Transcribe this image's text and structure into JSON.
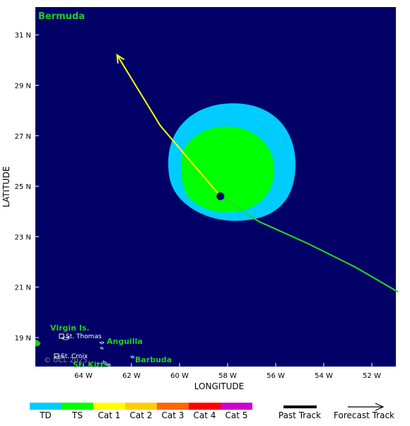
{
  "map": {
    "region_label": "Bermuda",
    "xlabel": "LONGITUDE",
    "ylabel": "LATITUDE",
    "copyright": "© UCL 2025",
    "ocean_color": "#000066",
    "x_ticks": [
      "64 W",
      "62 W",
      "60 W",
      "58 W",
      "56 W",
      "54 W",
      "52 W"
    ],
    "y_ticks": [
      "31 N",
      "29 N",
      "27 N",
      "25 N",
      "23 N",
      "21 N",
      "19 N"
    ],
    "places": {
      "virgin_islands": "Virgin Is.",
      "st_thomas": "St. Thomas",
      "st_croix": "St. Croix",
      "anguilla": "Anguilla",
      "st_kitts": "St. Kitts",
      "barbuda": "Barbuda"
    }
  },
  "storm": {
    "center": {
      "lon": -58.3,
      "lat": 24.6
    },
    "past_track": [
      {
        "lon": -50.9,
        "lat": 20.8
      },
      {
        "lon": -52.7,
        "lat": 21.8
      },
      {
        "lon": -54.6,
        "lat": 22.7
      },
      {
        "lon": -56.7,
        "lat": 23.6
      },
      {
        "lon": -58.3,
        "lat": 24.6
      }
    ],
    "forecast_track": [
      {
        "lon": -58.3,
        "lat": 24.6
      },
      {
        "lon": -60.8,
        "lat": 27.4
      },
      {
        "lon": -62.6,
        "lat": 30.2
      }
    ],
    "past_track_color": "#22dd22",
    "forecast_track_color": "#ffff00"
  },
  "legend": {
    "categories": [
      {
        "label": "TD",
        "color": "#00ccff"
      },
      {
        "label": "TS",
        "color": "#00ff00"
      },
      {
        "label": "Cat 1",
        "color": "#ffff00"
      },
      {
        "label": "Cat 2",
        "color": "#ffcc00"
      },
      {
        "label": "Cat 3",
        "color": "#ff6600"
      },
      {
        "label": "Cat 4",
        "color": "#ff0000"
      },
      {
        "label": "Cat 5",
        "color": "#cc00cc"
      }
    ],
    "past_track_label": "Past Track",
    "forecast_track_label": "Forecast Track"
  }
}
